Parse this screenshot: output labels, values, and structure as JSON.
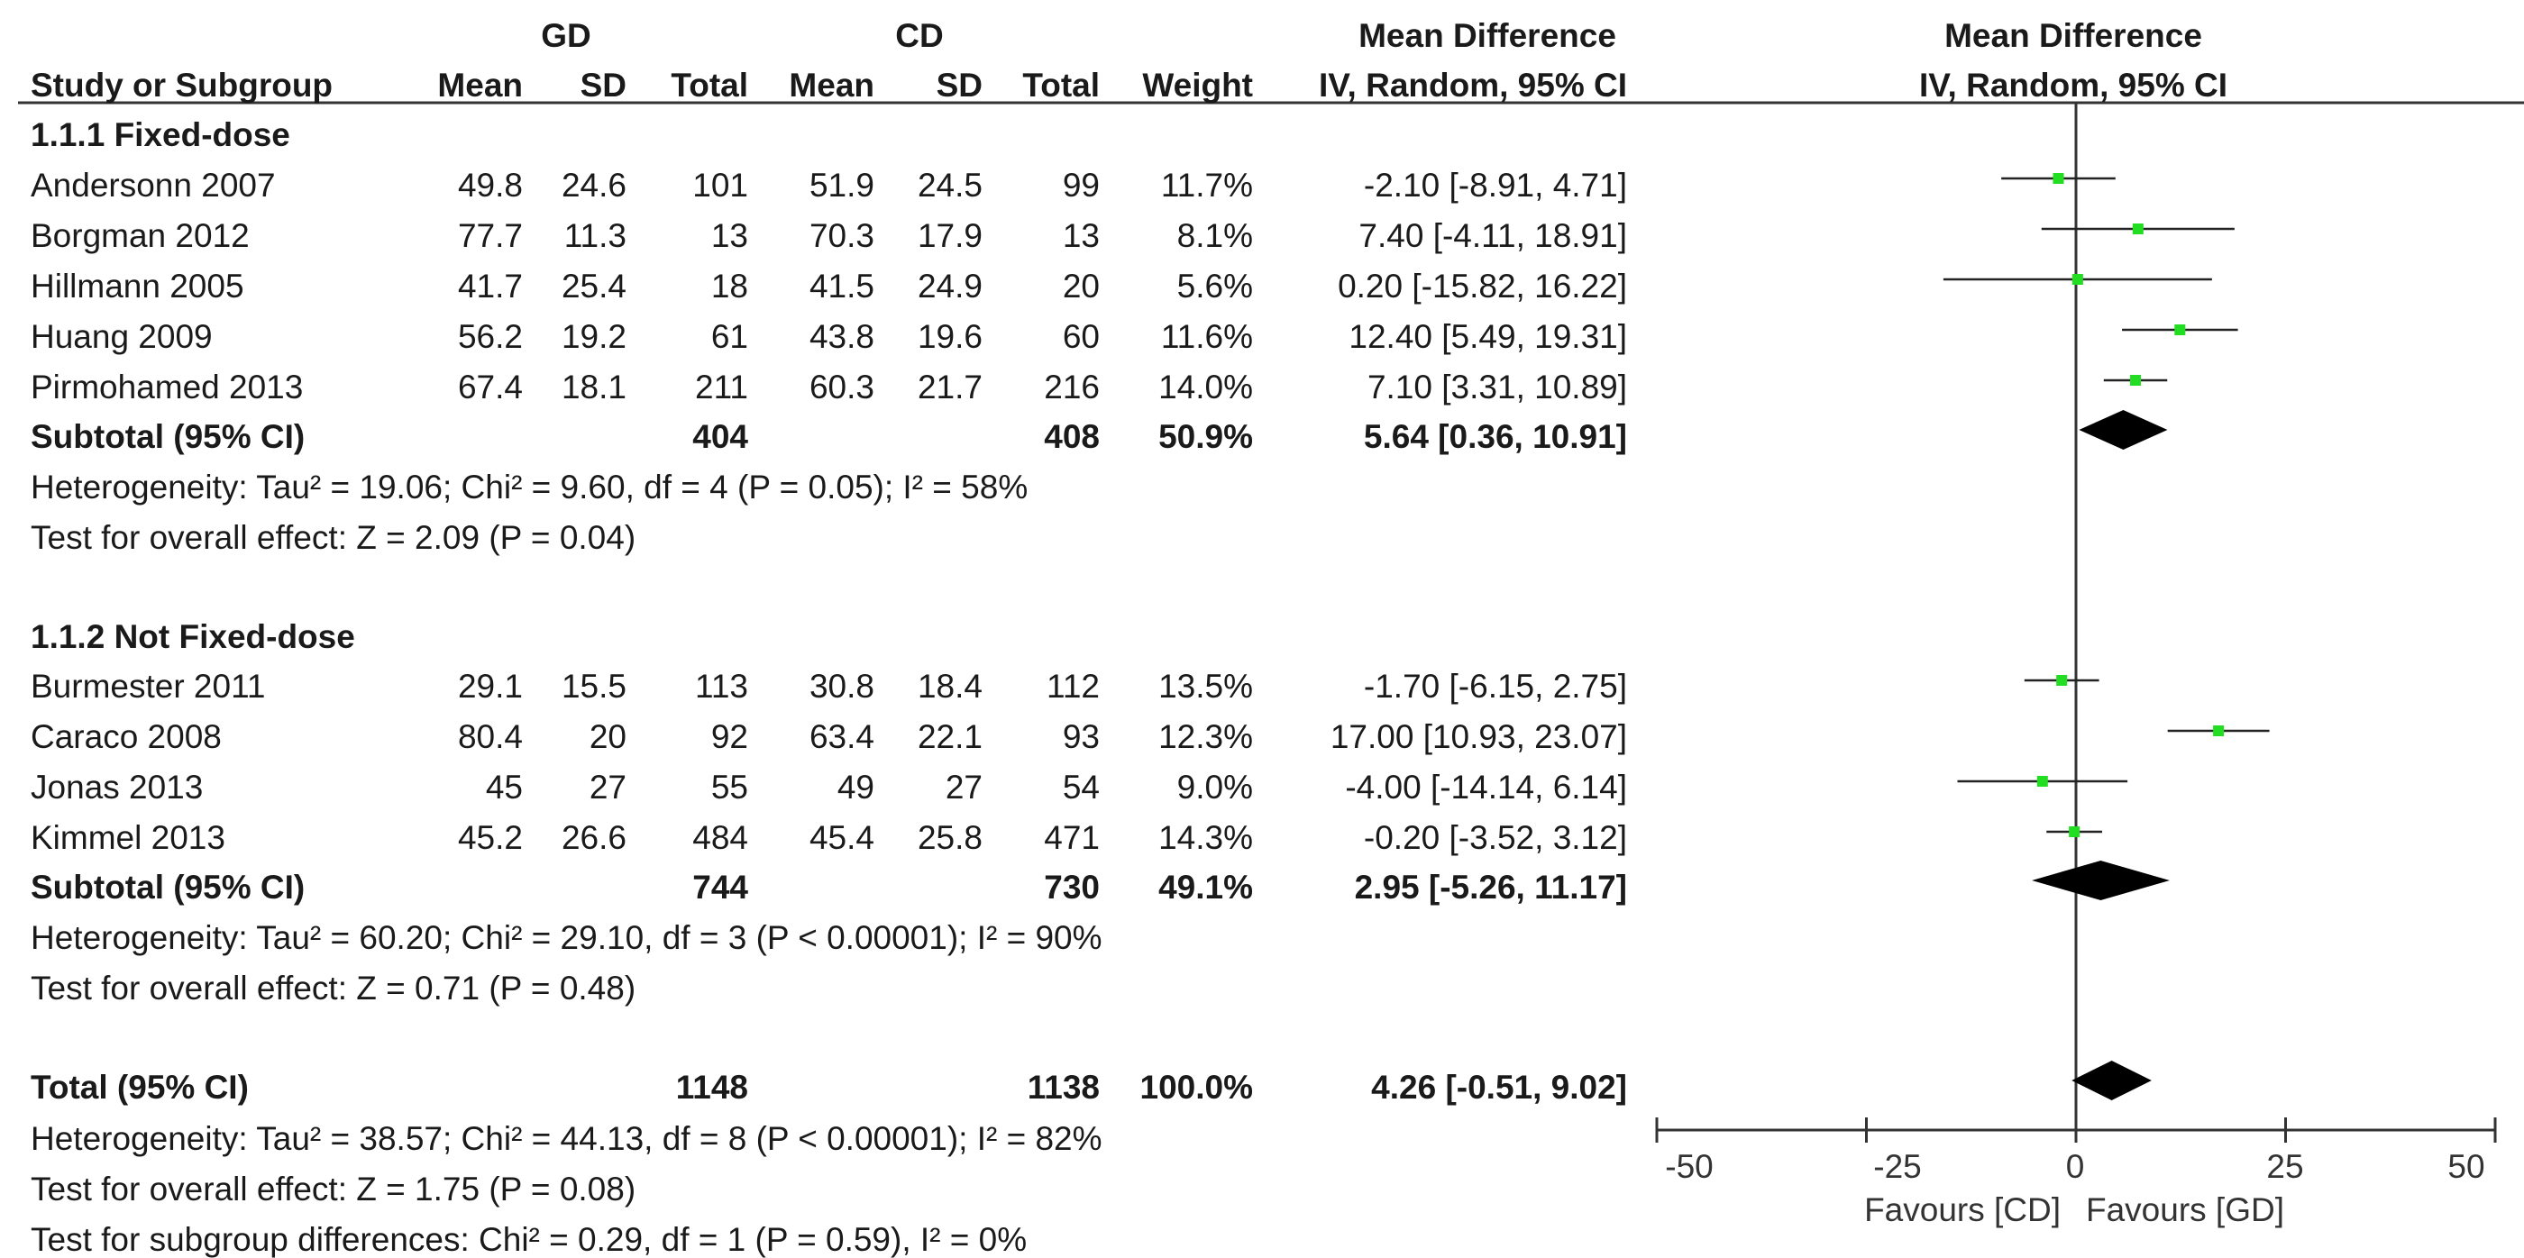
{
  "header": {
    "gd_group": "GD",
    "cd_group": "CD",
    "md_group": "Mean Difference",
    "plot_group": "Mean Difference",
    "study_col": "Study or Subgroup",
    "mean": "Mean",
    "sd": "SD",
    "total": "Total",
    "weight": "Weight",
    "method": "IV, Random, 95% CI",
    "plot_method": "IV, Random, 95% CI"
  },
  "subgroups": [
    {
      "title": "1.1.1 Fixed-dose",
      "studies": [
        {
          "name": "Andersonn 2007",
          "gd_mean": "49.8",
          "gd_sd": "24.6",
          "gd_total": "101",
          "cd_mean": "51.9",
          "cd_sd": "24.5",
          "cd_total": "99",
          "weight": "11.7%",
          "ci_text": "-2.10 [-8.91, 4.71]"
        },
        {
          "name": "Borgman 2012",
          "gd_mean": "77.7",
          "gd_sd": "11.3",
          "gd_total": "13",
          "cd_mean": "70.3",
          "cd_sd": "17.9",
          "cd_total": "13",
          "weight": "8.1%",
          "ci_text": "7.40 [-4.11, 18.91]"
        },
        {
          "name": "Hillmann 2005",
          "gd_mean": "41.7",
          "gd_sd": "25.4",
          "gd_total": "18",
          "cd_mean": "41.5",
          "cd_sd": "24.9",
          "cd_total": "20",
          "weight": "5.6%",
          "ci_text": "0.20 [-15.82, 16.22]"
        },
        {
          "name": "Huang 2009",
          "gd_mean": "56.2",
          "gd_sd": "19.2",
          "gd_total": "61",
          "cd_mean": "43.8",
          "cd_sd": "19.6",
          "cd_total": "60",
          "weight": "11.6%",
          "ci_text": "12.40 [5.49, 19.31]"
        },
        {
          "name": "Pirmohamed 2013",
          "gd_mean": "67.4",
          "gd_sd": "18.1",
          "gd_total": "211",
          "cd_mean": "60.3",
          "cd_sd": "21.7",
          "cd_total": "216",
          "weight": "14.0%",
          "ci_text": "7.10 [3.31, 10.89]"
        }
      ],
      "subtotal": {
        "label": "Subtotal (95% CI)",
        "gd_total": "404",
        "cd_total": "408",
        "weight": "50.9%",
        "ci_text": "5.64 [0.36, 10.91]"
      },
      "heterogeneity": "Heterogeneity: Tau² = 19.06; Chi² = 9.60, df = 4 (P = 0.05); I² = 58%",
      "overall": "Test for overall effect: Z = 2.09 (P = 0.04)"
    },
    {
      "title": "1.1.2 Not Fixed-dose",
      "studies": [
        {
          "name": "Burmester 2011",
          "gd_mean": "29.1",
          "gd_sd": "15.5",
          "gd_total": "113",
          "cd_mean": "30.8",
          "cd_sd": "18.4",
          "cd_total": "112",
          "weight": "13.5%",
          "ci_text": "-1.70 [-6.15, 2.75]"
        },
        {
          "name": "Caraco 2008",
          "gd_mean": "80.4",
          "gd_sd": "20",
          "gd_total": "92",
          "cd_mean": "63.4",
          "cd_sd": "22.1",
          "cd_total": "93",
          "weight": "12.3%",
          "ci_text": "17.00 [10.93, 23.07]"
        },
        {
          "name": "Jonas 2013",
          "gd_mean": "45",
          "gd_sd": "27",
          "gd_total": "55",
          "cd_mean": "49",
          "cd_sd": "27",
          "cd_total": "54",
          "weight": "9.0%",
          "ci_text": "-4.00 [-14.14, 6.14]"
        },
        {
          "name": "Kimmel 2013",
          "gd_mean": "45.2",
          "gd_sd": "26.6",
          "gd_total": "484",
          "cd_mean": "45.4",
          "cd_sd": "25.8",
          "cd_total": "471",
          "weight": "14.3%",
          "ci_text": "-0.20 [-3.52, 3.12]"
        }
      ],
      "subtotal": {
        "label": "Subtotal (95% CI)",
        "gd_total": "744",
        "cd_total": "730",
        "weight": "49.1%",
        "ci_text": "2.95 [-5.26, 11.17]"
      },
      "heterogeneity": "Heterogeneity: Tau² = 60.20; Chi² = 29.10, df = 3 (P < 0.00001); I² = 90%",
      "overall": "Test for overall effect: Z = 0.71 (P = 0.48)"
    }
  ],
  "total": {
    "label": "Total (95% CI)",
    "gd_total": "1148",
    "cd_total": "1138",
    "weight": "100.0%",
    "ci_text": "4.26 [-0.51, 9.02]",
    "heterogeneity": "Heterogeneity: Tau² = 38.57; Chi² = 44.13, df = 8 (P < 0.00001); I² = 82%",
    "overall": "Test for overall effect: Z = 1.75 (P = 0.08)",
    "subgroup_diff": "Test for subgroup differences: Chi² = 0.29, df = 1 (P = 0.59), I² = 0%"
  },
  "axis": {
    "ticks": [
      "-50",
      "-25",
      "0",
      "25",
      "50"
    ],
    "favours_left": "Favours [CD]",
    "favours_right": "Favours [GD]"
  },
  "colors": {
    "point": "#22dd22",
    "line": "#222222",
    "diamond": "#000000"
  },
  "chart_data": {
    "type": "forest",
    "xlim": [
      -50,
      50
    ],
    "x_scale": "linear",
    "reference_line": 0,
    "studies": [
      {
        "name": "Andersonn 2007",
        "md": -2.1,
        "lo": -8.91,
        "hi": 4.71,
        "weight": 11.7
      },
      {
        "name": "Borgman 2012",
        "md": 7.4,
        "lo": -4.11,
        "hi": 18.91,
        "weight": 8.1
      },
      {
        "name": "Hillmann 2005",
        "md": 0.2,
        "lo": -15.82,
        "hi": 16.22,
        "weight": 5.6
      },
      {
        "name": "Huang 2009",
        "md": 12.4,
        "lo": 5.49,
        "hi": 19.31,
        "weight": 11.6
      },
      {
        "name": "Pirmohamed 2013",
        "md": 7.1,
        "lo": 3.31,
        "hi": 10.89,
        "weight": 14.0
      },
      {
        "name": "Burmester 2011",
        "md": -1.7,
        "lo": -6.15,
        "hi": 2.75,
        "weight": 13.5
      },
      {
        "name": "Caraco 2008",
        "md": 17.0,
        "lo": 10.93,
        "hi": 23.07,
        "weight": 12.3
      },
      {
        "name": "Jonas 2013",
        "md": -4.0,
        "lo": -14.14,
        "hi": 6.14,
        "weight": 9.0
      },
      {
        "name": "Kimmel 2013",
        "md": -0.2,
        "lo": -3.52,
        "hi": 3.12,
        "weight": 14.3
      }
    ],
    "pooled": [
      {
        "name": "Subtotal 1.1.1 Fixed-dose",
        "md": 5.64,
        "lo": 0.36,
        "hi": 10.91
      },
      {
        "name": "Subtotal 1.1.2 Not Fixed-dose",
        "md": 2.95,
        "lo": -5.26,
        "hi": 11.17
      },
      {
        "name": "Total",
        "md": 4.26,
        "lo": -0.51,
        "hi": 9.02
      }
    ]
  }
}
